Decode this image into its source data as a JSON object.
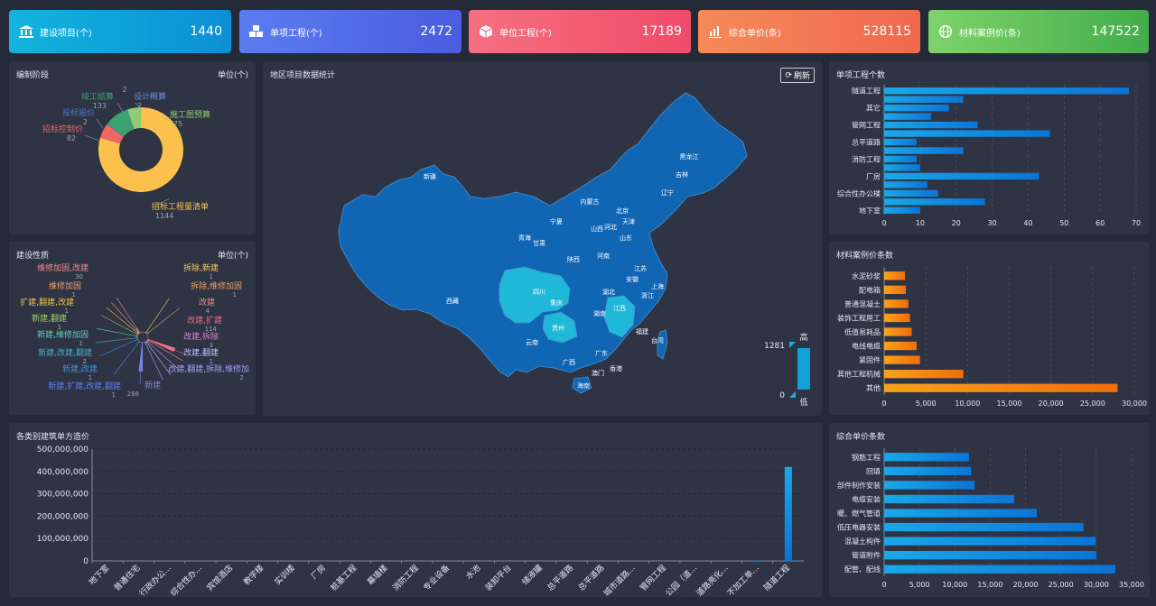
{
  "cards": [
    {
      "label": "建设项目(个)",
      "value": "1440",
      "icon": "building-icon"
    },
    {
      "label": "单项工程(个)",
      "value": "2472",
      "icon": "cubes-icon"
    },
    {
      "label": "单位工程(个)",
      "value": "17189",
      "icon": "cube-icon"
    },
    {
      "label": "综合单价(条)",
      "value": "528115",
      "icon": "bar-chart-icon"
    },
    {
      "label": "材料案例价(条)",
      "value": "147522",
      "icon": "globe-icon"
    }
  ],
  "phase_panel": {
    "title": "编制阶段",
    "unit": "单位(个)",
    "chart_data": {
      "type": "pie",
      "slices": [
        {
          "name": "招标工程量清单",
          "value": 1144,
          "color": "#fcc14d"
        },
        {
          "name": "招标控制价",
          "value": 82,
          "color": "#ee6666"
        },
        {
          "name": "投标报价",
          "value": 2,
          "color": "#5470c6"
        },
        {
          "name": "竣工结算",
          "value": 133,
          "color": "#3ba272"
        },
        {
          "name": "设计概算",
          "value": 2,
          "color": "#6b8bdc"
        },
        {
          "name": "施工图预算",
          "value": 75,
          "color": "#91cc75"
        }
      ],
      "extra_labels": [
        "2"
      ]
    }
  },
  "nature_panel": {
    "title": "建设性质",
    "unit": "单位(个)",
    "chart_data": {
      "type": "pie",
      "slices": [
        {
          "name": "新建",
          "value": 288,
          "color": "#7b7fe8"
        },
        {
          "name": "改建,扩建",
          "value": 114,
          "color": "#f06a8e"
        },
        {
          "name": "维修加固,改建",
          "value": 30,
          "color": "#f08c8c"
        },
        {
          "name": "改建",
          "value": 4,
          "color": "#f08c8c"
        },
        {
          "name": "维修加固",
          "value": 1,
          "color": "#f0a070"
        },
        {
          "name": "扩建,翻建,改建",
          "value": 1,
          "color": "#f0c050"
        },
        {
          "name": "新建,翻建",
          "value": 1,
          "color": "#a0d060"
        },
        {
          "name": "新建,维修加固",
          "value": 1,
          "color": "#60d0b0"
        },
        {
          "name": "新建,改建,翻建",
          "value": 2,
          "color": "#40b0d0"
        },
        {
          "name": "新建,改建",
          "value": 1,
          "color": "#4090e0"
        },
        {
          "name": "新建,扩建,改建,翻建",
          "value": 1,
          "color": "#6080f0"
        },
        {
          "name": "拆除,新建",
          "value": 1,
          "color": "#f0d060"
        },
        {
          "name": "拆除,维修加固",
          "value": 1,
          "color": "#f0a060"
        },
        {
          "name": "改建,拆除",
          "value": 3,
          "color": "#e080d0"
        },
        {
          "name": "改建,翻建",
          "value": 1,
          "color": "#c0c0ff"
        },
        {
          "name": "改建,翻建,拆除,维修加",
          "value": 2,
          "color": "#a0a0ff"
        }
      ]
    }
  },
  "map_panel": {
    "title": "地区项目数据统计",
    "refresh_label": "刷新",
    "legend_high": "高",
    "legend_low": "低",
    "legend_max": "1281",
    "legend_min": "0",
    "provinces": [
      "新疆",
      "西藏",
      "青海",
      "甘肃",
      "宁夏",
      "内蒙古",
      "黑龙江",
      "吉林",
      "辽宁",
      "北京",
      "天津",
      "河北",
      "山西",
      "山东",
      "陕西",
      "河南",
      "四川",
      "重庆",
      "湖北",
      "安徽",
      "江苏",
      "上海",
      "浙江",
      "江西",
      "湖南",
      "贵州",
      "云南",
      "广西",
      "广东",
      "福建",
      "台湾",
      "海南",
      "香港",
      "澳门"
    ]
  },
  "single_project_panel": {
    "title": "单项工程个数",
    "chart_data": {
      "type": "bar",
      "orientation": "horizontal",
      "categories": [
        "隧道工程",
        "",
        "其它",
        "",
        "管网工程",
        "",
        "总平道路",
        "",
        "消防工程",
        "",
        "厂房",
        "",
        "综合性办公楼",
        "",
        "地下室"
      ],
      "values": [
        68,
        22,
        18,
        13,
        26,
        46,
        9,
        22,
        9,
        10,
        43,
        12,
        15,
        28,
        10
      ],
      "xlim": [
        0,
        70
      ],
      "xticks": [
        "0",
        "10",
        "20",
        "30",
        "40",
        "50",
        "60",
        "70"
      ]
    }
  },
  "material_panel": {
    "title": "材料案例价条数",
    "chart_data": {
      "type": "bar",
      "orientation": "horizontal",
      "categories": [
        "水泥砂浆",
        "配电箱",
        "普通混凝土",
        "装饰工程用工",
        "低值易耗品",
        "电线电缆",
        "紧固件",
        "其他工程机械",
        "其他"
      ],
      "values": [
        2500,
        2600,
        2900,
        3100,
        3300,
        3900,
        4300,
        9500,
        28000
      ],
      "xlim": [
        0,
        30000
      ],
      "xticks": [
        "0",
        "5,000",
        "10,000",
        "15,000",
        "20,000",
        "25,000",
        "30,000"
      ]
    }
  },
  "unit_price_panel": {
    "title": "综合单价条数",
    "chart_data": {
      "type": "bar",
      "orientation": "horizontal",
      "categories": [
        "钢筋工程",
        "回填",
        "部件制作安装",
        "电缆安装",
        "暖、燃气管道",
        "低压电器安装",
        "混凝土构件",
        "管道附件",
        "配管、配线"
      ],
      "values": [
        12000,
        12300,
        12800,
        18400,
        21600,
        28200,
        29900,
        30000,
        32700
      ],
      "xlim": [
        0,
        35000
      ],
      "xticks": [
        "0",
        "5,000",
        "10,000",
        "15,000",
        "20,000",
        "25,000",
        "30,000",
        "35,000"
      ]
    }
  },
  "cost_panel": {
    "title": "各类别建筑单方造价",
    "chart_data": {
      "type": "bar",
      "categories": [
        "地下室",
        "普通住宅",
        "行政办公...",
        "综合性办...",
        "宾馆酒店",
        "教学楼",
        "实训楼",
        "厂房",
        "桩基工程",
        "幕墙楼",
        "消防工程",
        "专业设备",
        "水池",
        "装卸平台",
        "储液罐",
        "总平道路",
        "总平道路",
        "城市道路...",
        "管网工程",
        "公园（道...",
        "道路亮化...",
        "不加工单...",
        "隧道工程"
      ],
      "values": [
        0,
        0,
        0,
        0,
        0,
        0,
        0,
        0,
        0,
        0,
        0,
        0,
        0,
        0,
        0,
        0,
        0,
        0,
        0,
        0,
        0,
        2000000,
        420000000
      ],
      "ylim": [
        0,
        500000000
      ],
      "yticks": [
        "0",
        "100,000,000",
        "200,000,000",
        "300,000,000",
        "400,000,000",
        "500,000,000"
      ]
    }
  }
}
